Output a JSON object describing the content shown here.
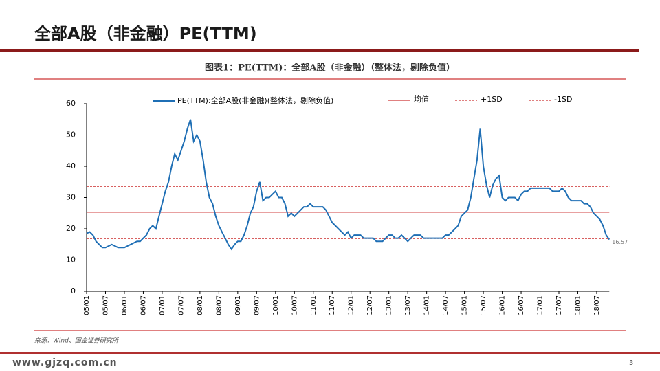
{
  "header": {
    "title": "全部A股（非金融）PE(TTM)"
  },
  "source": "来源：Wind、国金证券研究所",
  "footer": {
    "site": "www.gjzq.com.cn",
    "page": "3"
  },
  "chart_data": {
    "type": "line",
    "title": "图表1：PE(TTM)：全部A股（非金融）（整体法，剔除负值）",
    "categories": [
      "05/01",
      null,
      null,
      null,
      null,
      null,
      "05/07",
      null,
      null,
      null,
      null,
      null,
      "06/01",
      null,
      null,
      null,
      null,
      null,
      "06/07",
      null,
      null,
      null,
      null,
      null,
      "07/01",
      null,
      null,
      null,
      null,
      null,
      "07/07",
      null,
      null,
      null,
      null,
      null,
      "08/01",
      null,
      null,
      null,
      null,
      null,
      "08/07",
      null,
      null,
      null,
      null,
      null,
      "09/01",
      null,
      null,
      null,
      null,
      null,
      "09/07",
      null,
      null,
      null,
      null,
      null,
      "10/01",
      null,
      null,
      null,
      null,
      null,
      "10/07",
      null,
      null,
      null,
      null,
      null,
      "11/01",
      null,
      null,
      null,
      null,
      null,
      "11/07",
      null,
      null,
      null,
      null,
      null,
      "12/01",
      null,
      null,
      null,
      null,
      null,
      "12/07",
      null,
      null,
      null,
      null,
      null,
      "13/01",
      null,
      null,
      null,
      null,
      null,
      "13/07",
      null,
      null,
      null,
      null,
      null,
      "14/01",
      null,
      null,
      null,
      null,
      null,
      "14/07",
      null,
      null,
      null,
      null,
      null,
      "15/01",
      null,
      null,
      null,
      null,
      null,
      "15/07",
      null,
      null,
      null,
      null,
      null,
      "16/01",
      null,
      null,
      null,
      null,
      null,
      "16/07",
      null,
      null,
      null,
      null,
      null,
      "17/01",
      null,
      null,
      null,
      null,
      null,
      "17/07",
      null,
      null,
      null,
      null,
      null,
      "18/01",
      null,
      null,
      null,
      null,
      null,
      "18/07",
      null,
      null,
      null,
      null
    ],
    "series": [
      {
        "name": "PE(TTM):全部A股(非金融)(整体法，剔除负值)",
        "color": "#1f6fb5",
        "values": [
          18.5,
          19,
          18,
          16,
          15,
          14,
          14,
          14.5,
          15,
          14.5,
          14,
          14,
          14,
          14.5,
          15,
          15.5,
          16,
          16,
          17,
          18,
          20,
          21,
          20,
          24,
          28,
          32,
          35,
          40,
          44,
          42,
          45,
          48,
          52,
          55,
          48,
          50,
          48,
          42,
          35,
          30,
          28,
          24,
          21,
          19,
          17,
          15,
          13.5,
          15,
          16,
          16,
          18,
          21,
          25,
          27,
          32,
          35,
          29,
          30,
          30,
          31,
          32,
          30,
          30,
          28,
          24,
          25,
          24,
          25,
          26,
          27,
          27,
          28,
          27,
          27,
          27,
          27,
          26,
          24,
          22,
          21,
          20,
          19,
          18,
          19,
          17,
          18,
          18,
          18,
          17,
          17,
          17,
          17,
          16,
          16,
          16,
          17,
          18,
          18,
          17,
          17,
          18,
          17,
          16,
          17,
          18,
          18,
          18,
          17,
          17,
          17,
          17,
          17,
          17,
          17,
          18,
          18,
          19,
          20,
          21,
          24,
          25,
          26,
          30,
          36,
          42,
          52,
          40,
          34,
          30,
          34,
          36,
          37,
          30,
          29,
          30,
          30,
          30,
          29,
          31,
          32,
          32,
          33,
          33,
          33,
          33,
          33,
          33,
          33,
          32,
          32,
          32,
          33,
          32,
          30,
          29,
          29,
          29,
          29,
          28,
          28,
          27,
          25,
          24,
          23,
          21,
          18,
          16.57
        ]
      }
    ],
    "value_labels": {
      "last": "16.57"
    },
    "reference_lines": [
      {
        "name": "均值",
        "value": 25.3,
        "color": "#c00000",
        "style": "solid"
      },
      {
        "name": "+1SD",
        "value": 33.6,
        "color": "#c00000",
        "style": "dashed"
      },
      {
        "name": "-1SD",
        "value": 16.9,
        "color": "#c00000",
        "style": "dashed"
      }
    ],
    "ylim": [
      0,
      60
    ],
    "yticks": [
      0,
      10,
      20,
      30,
      40,
      50,
      60
    ],
    "grid": false
  }
}
